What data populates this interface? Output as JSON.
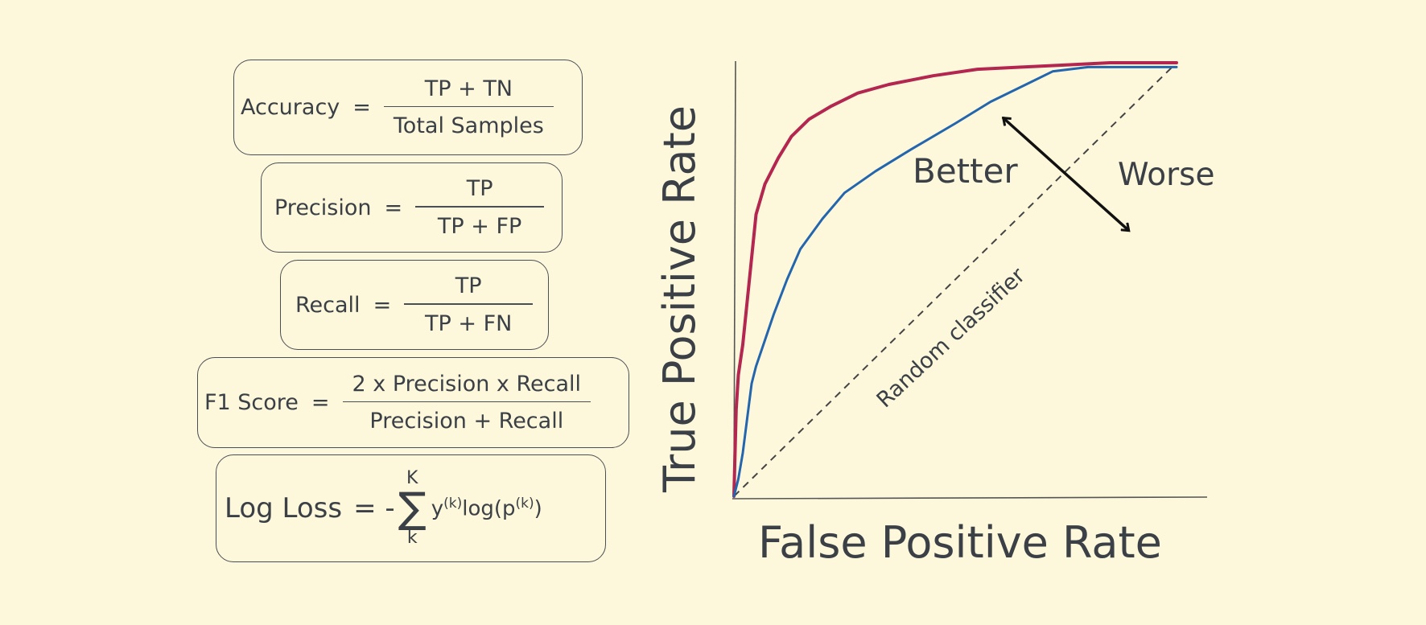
{
  "formulas": {
    "accuracy": {
      "lhs": "Accuracy",
      "eq": "=",
      "num": "TP + TN",
      "den": "Total Samples"
    },
    "precision": {
      "lhs": "Precision",
      "eq": "=",
      "num": "TP",
      "den": "TP + FP"
    },
    "recall": {
      "lhs": "Recall",
      "eq": "=",
      "num": "TP",
      "den": "TP + FN"
    },
    "f1": {
      "lhs": "F1 Score",
      "eq": "=",
      "num": "2 x Precision x Recall",
      "den": "Precision + Recall"
    },
    "logloss": {
      "lhs": "Log Loss",
      "eq": "= -",
      "sum": "∑",
      "upper": "K",
      "lower": "k",
      "term_y": "y",
      "sup1": "(k)",
      "term_log": "log(p",
      "sup2": "(k)",
      "close": ")"
    }
  },
  "chart_data": {
    "type": "line",
    "xlabel": "False Positive Rate",
    "ylabel": "True Positive Rate",
    "xlim": [
      0,
      1
    ],
    "ylim": [
      0,
      1
    ],
    "grid": false,
    "series": [
      {
        "color": "#b3264f",
        "x": [
          0,
          0.005,
          0.01,
          0.02,
          0.03,
          0.04,
          0.05,
          0.07,
          0.1,
          0.13,
          0.17,
          0.22,
          0.28,
          0.35,
          0.45,
          0.55,
          0.65,
          0.75,
          0.85,
          0.95,
          1.0
        ],
        "y": [
          0,
          0.2,
          0.28,
          0.35,
          0.45,
          0.55,
          0.65,
          0.72,
          0.78,
          0.83,
          0.87,
          0.9,
          0.93,
          0.95,
          0.97,
          0.985,
          0.99,
          0.995,
          1.0,
          1.0,
          1.0
        ]
      },
      {
        "color": "#2366ad",
        "x": [
          0,
          0.01,
          0.02,
          0.03,
          0.04,
          0.05,
          0.07,
          0.09,
          0.12,
          0.15,
          0.2,
          0.25,
          0.32,
          0.4,
          0.5,
          0.58,
          0.66,
          0.72,
          0.8,
          0.9,
          1.0
        ],
        "y": [
          0,
          0.04,
          0.1,
          0.18,
          0.26,
          0.3,
          0.36,
          0.42,
          0.5,
          0.57,
          0.64,
          0.7,
          0.75,
          0.8,
          0.86,
          0.91,
          0.95,
          0.98,
          0.99,
          0.99,
          0.99
        ]
      }
    ],
    "reference_line": {
      "label": "Random classifier"
    },
    "annotations": {
      "better": "Better",
      "worse": "Worse"
    }
  }
}
